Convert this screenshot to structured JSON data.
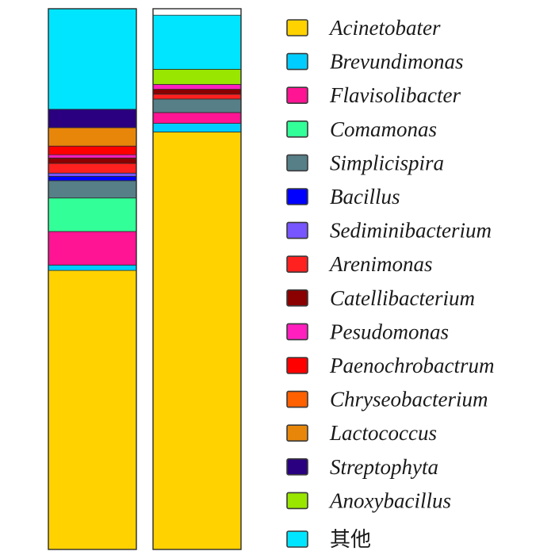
{
  "chart_data": {
    "type": "bar",
    "stacked": true,
    "categories": [
      "",
      ""
    ],
    "title": "",
    "xlabel": "",
    "ylabel": "",
    "ylim": [
      0,
      100
    ],
    "series": [
      {
        "name": "Acinetobater",
        "color": "#ffd200",
        "values": [
          51.6,
          77.2
        ]
      },
      {
        "name": "Brevundimonas",
        "color": "#00ccff",
        "values": [
          1.0,
          1.6
        ]
      },
      {
        "name": "Flavisolibacter",
        "color": "#ff1493",
        "values": [
          6.2,
          2.0
        ]
      },
      {
        "name": "Comamonas",
        "color": "#33ff99",
        "values": [
          6.2,
          0
        ]
      },
      {
        "name": "Simplicispira",
        "color": "#567f88",
        "values": [
          3.2,
          2.5
        ]
      },
      {
        "name": "Bacillus",
        "color": "#0000ff",
        "values": [
          0.8,
          0
        ]
      },
      {
        "name": "Sediminibacterium",
        "color": "#7755ff",
        "values": [
          0.6,
          0
        ]
      },
      {
        "name": "Arenimonas",
        "color": "#ff2020",
        "values": [
          1.8,
          0.9
        ]
      },
      {
        "name": "Catellibacterium",
        "color": "#8b0000",
        "values": [
          1.0,
          0.9
        ]
      },
      {
        "name": "Pesudomonas",
        "color": "#ff1fbf",
        "values": [
          0.6,
          0.9
        ]
      },
      {
        "name": "Paenochrobactrum",
        "color": "#ff0000",
        "values": [
          1.6,
          0
        ]
      },
      {
        "name": "Chryseobacterium",
        "color": "#ff6000",
        "values": [
          0,
          0
        ]
      },
      {
        "name": "Lactococcus",
        "color": "#e8860a",
        "values": [
          3.4,
          0
        ]
      },
      {
        "name": "Streptophyta",
        "color": "#2a0080",
        "values": [
          3.4,
          0
        ]
      },
      {
        "name": "Anoxybacillus",
        "color": "#99e600",
        "values": [
          0,
          2.8
        ]
      },
      {
        "name": "其他",
        "color": "#00e5ff",
        "values": [
          18.6,
          10.0
        ]
      }
    ],
    "legend_position": "right",
    "grid": false
  }
}
